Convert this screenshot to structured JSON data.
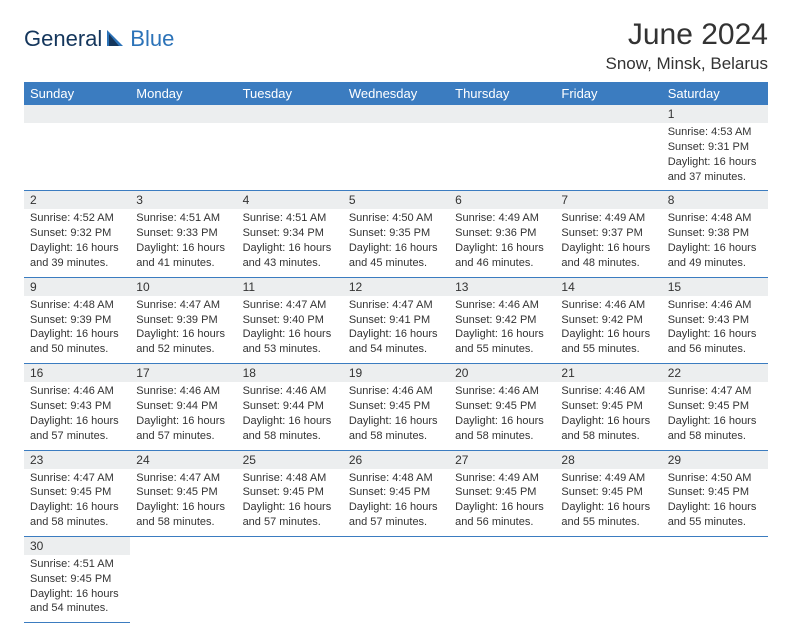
{
  "logo": {
    "general": "General",
    "blue": "Blue"
  },
  "title": "June 2024",
  "location": "Snow, Minsk, Belarus",
  "colors": {
    "header_bg": "#3b7cc0",
    "header_text": "#ffffff",
    "daynum_bg": "#eceeef",
    "border": "#3b7cc0",
    "logo_dark": "#14365c",
    "logo_blue": "#2c73b8"
  },
  "weekdays": [
    "Sunday",
    "Monday",
    "Tuesday",
    "Wednesday",
    "Thursday",
    "Friday",
    "Saturday"
  ],
  "weeks": [
    [
      null,
      null,
      null,
      null,
      null,
      null,
      {
        "n": "1",
        "sr": "Sunrise: 4:53 AM",
        "ss": "Sunset: 9:31 PM",
        "d1": "Daylight: 16 hours",
        "d2": "and 37 minutes."
      }
    ],
    [
      {
        "n": "2",
        "sr": "Sunrise: 4:52 AM",
        "ss": "Sunset: 9:32 PM",
        "d1": "Daylight: 16 hours",
        "d2": "and 39 minutes."
      },
      {
        "n": "3",
        "sr": "Sunrise: 4:51 AM",
        "ss": "Sunset: 9:33 PM",
        "d1": "Daylight: 16 hours",
        "d2": "and 41 minutes."
      },
      {
        "n": "4",
        "sr": "Sunrise: 4:51 AM",
        "ss": "Sunset: 9:34 PM",
        "d1": "Daylight: 16 hours",
        "d2": "and 43 minutes."
      },
      {
        "n": "5",
        "sr": "Sunrise: 4:50 AM",
        "ss": "Sunset: 9:35 PM",
        "d1": "Daylight: 16 hours",
        "d2": "and 45 minutes."
      },
      {
        "n": "6",
        "sr": "Sunrise: 4:49 AM",
        "ss": "Sunset: 9:36 PM",
        "d1": "Daylight: 16 hours",
        "d2": "and 46 minutes."
      },
      {
        "n": "7",
        "sr": "Sunrise: 4:49 AM",
        "ss": "Sunset: 9:37 PM",
        "d1": "Daylight: 16 hours",
        "d2": "and 48 minutes."
      },
      {
        "n": "8",
        "sr": "Sunrise: 4:48 AM",
        "ss": "Sunset: 9:38 PM",
        "d1": "Daylight: 16 hours",
        "d2": "and 49 minutes."
      }
    ],
    [
      {
        "n": "9",
        "sr": "Sunrise: 4:48 AM",
        "ss": "Sunset: 9:39 PM",
        "d1": "Daylight: 16 hours",
        "d2": "and 50 minutes."
      },
      {
        "n": "10",
        "sr": "Sunrise: 4:47 AM",
        "ss": "Sunset: 9:39 PM",
        "d1": "Daylight: 16 hours",
        "d2": "and 52 minutes."
      },
      {
        "n": "11",
        "sr": "Sunrise: 4:47 AM",
        "ss": "Sunset: 9:40 PM",
        "d1": "Daylight: 16 hours",
        "d2": "and 53 minutes."
      },
      {
        "n": "12",
        "sr": "Sunrise: 4:47 AM",
        "ss": "Sunset: 9:41 PM",
        "d1": "Daylight: 16 hours",
        "d2": "and 54 minutes."
      },
      {
        "n": "13",
        "sr": "Sunrise: 4:46 AM",
        "ss": "Sunset: 9:42 PM",
        "d1": "Daylight: 16 hours",
        "d2": "and 55 minutes."
      },
      {
        "n": "14",
        "sr": "Sunrise: 4:46 AM",
        "ss": "Sunset: 9:42 PM",
        "d1": "Daylight: 16 hours",
        "d2": "and 55 minutes."
      },
      {
        "n": "15",
        "sr": "Sunrise: 4:46 AM",
        "ss": "Sunset: 9:43 PM",
        "d1": "Daylight: 16 hours",
        "d2": "and 56 minutes."
      }
    ],
    [
      {
        "n": "16",
        "sr": "Sunrise: 4:46 AM",
        "ss": "Sunset: 9:43 PM",
        "d1": "Daylight: 16 hours",
        "d2": "and 57 minutes."
      },
      {
        "n": "17",
        "sr": "Sunrise: 4:46 AM",
        "ss": "Sunset: 9:44 PM",
        "d1": "Daylight: 16 hours",
        "d2": "and 57 minutes."
      },
      {
        "n": "18",
        "sr": "Sunrise: 4:46 AM",
        "ss": "Sunset: 9:44 PM",
        "d1": "Daylight: 16 hours",
        "d2": "and 58 minutes."
      },
      {
        "n": "19",
        "sr": "Sunrise: 4:46 AM",
        "ss": "Sunset: 9:45 PM",
        "d1": "Daylight: 16 hours",
        "d2": "and 58 minutes."
      },
      {
        "n": "20",
        "sr": "Sunrise: 4:46 AM",
        "ss": "Sunset: 9:45 PM",
        "d1": "Daylight: 16 hours",
        "d2": "and 58 minutes."
      },
      {
        "n": "21",
        "sr": "Sunrise: 4:46 AM",
        "ss": "Sunset: 9:45 PM",
        "d1": "Daylight: 16 hours",
        "d2": "and 58 minutes."
      },
      {
        "n": "22",
        "sr": "Sunrise: 4:47 AM",
        "ss": "Sunset: 9:45 PM",
        "d1": "Daylight: 16 hours",
        "d2": "and 58 minutes."
      }
    ],
    [
      {
        "n": "23",
        "sr": "Sunrise: 4:47 AM",
        "ss": "Sunset: 9:45 PM",
        "d1": "Daylight: 16 hours",
        "d2": "and 58 minutes."
      },
      {
        "n": "24",
        "sr": "Sunrise: 4:47 AM",
        "ss": "Sunset: 9:45 PM",
        "d1": "Daylight: 16 hours",
        "d2": "and 58 minutes."
      },
      {
        "n": "25",
        "sr": "Sunrise: 4:48 AM",
        "ss": "Sunset: 9:45 PM",
        "d1": "Daylight: 16 hours",
        "d2": "and 57 minutes."
      },
      {
        "n": "26",
        "sr": "Sunrise: 4:48 AM",
        "ss": "Sunset: 9:45 PM",
        "d1": "Daylight: 16 hours",
        "d2": "and 57 minutes."
      },
      {
        "n": "27",
        "sr": "Sunrise: 4:49 AM",
        "ss": "Sunset: 9:45 PM",
        "d1": "Daylight: 16 hours",
        "d2": "and 56 minutes."
      },
      {
        "n": "28",
        "sr": "Sunrise: 4:49 AM",
        "ss": "Sunset: 9:45 PM",
        "d1": "Daylight: 16 hours",
        "d2": "and 55 minutes."
      },
      {
        "n": "29",
        "sr": "Sunrise: 4:50 AM",
        "ss": "Sunset: 9:45 PM",
        "d1": "Daylight: 16 hours",
        "d2": "and 55 minutes."
      }
    ],
    [
      {
        "n": "30",
        "sr": "Sunrise: 4:51 AM",
        "ss": "Sunset: 9:45 PM",
        "d1": "Daylight: 16 hours",
        "d2": "and 54 minutes."
      },
      null,
      null,
      null,
      null,
      null,
      null
    ]
  ]
}
